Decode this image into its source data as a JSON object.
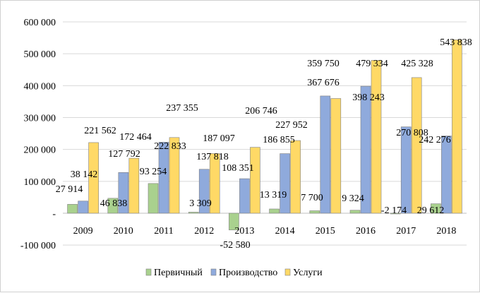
{
  "chart_data": {
    "type": "bar",
    "title": "",
    "xlabel": "",
    "ylabel": "",
    "categories": [
      "2009",
      "2010",
      "2011",
      "2012",
      "2013",
      "2014",
      "2015",
      "2016",
      "2017",
      "2018"
    ],
    "ylim": [
      -100000,
      600000
    ],
    "yticks": [
      -100000,
      0,
      100000,
      200000,
      300000,
      400000,
      500000,
      600000
    ],
    "ytick_labels": [
      "-100 000",
      "-",
      "100 000",
      "200 000",
      "300 000",
      "400 000",
      "500 000",
      "600 000"
    ],
    "grid": true,
    "legend_position": "bottom",
    "series": [
      {
        "name": "Первичный",
        "color": "#a9d18e",
        "values": [
          27914,
          46838,
          93254,
          3309,
          -52580,
          13319,
          7700,
          9324,
          -2174,
          29612
        ],
        "labels": [
          "27 914",
          "46 838",
          "93 254",
          "3 309",
          "-52 580",
          "13 319",
          "7 700",
          "9 324",
          "-2 174",
          "29 612"
        ]
      },
      {
        "name": "Производство",
        "color": "#8faadc",
        "values": [
          38142,
          127792,
          222833,
          137818,
          108351,
          186855,
          367676,
          398243,
          270808,
          242276
        ],
        "labels": [
          "38 142",
          "127 792",
          "222 833",
          "137 818",
          "108 351",
          "186 855",
          "367 676",
          "398 243",
          "270 808",
          "242 276"
        ]
      },
      {
        "name": "Услуги",
        "color": "#ffd966",
        "values": [
          221562,
          172464,
          237355,
          187097,
          206746,
          227952,
          359750,
          479334,
          425328,
          543838
        ],
        "labels": [
          "221 562",
          "172 464",
          "237 355",
          "187 097",
          "206 746",
          "227 952",
          "359 750",
          "479 334",
          "425 328",
          "543 838"
        ]
      }
    ]
  }
}
